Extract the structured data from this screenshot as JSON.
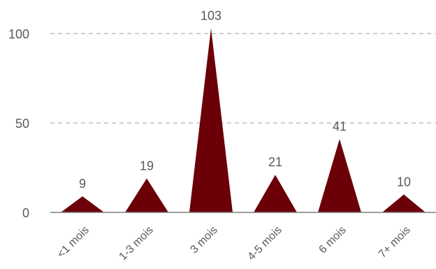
{
  "chart_data": {
    "type": "bar",
    "bar_shape": "triangle",
    "categories": [
      "<1 mois",
      "1-3 mois",
      "3 mois",
      "4-5 mois",
      "6 mois",
      "7+ mois"
    ],
    "values": [
      9,
      19,
      103,
      21,
      41,
      10
    ],
    "data_labels": [
      "9",
      "19",
      "103",
      "21",
      "41",
      "10"
    ],
    "title": "",
    "xlabel": "",
    "ylabel": "",
    "ylim": [
      0,
      100
    ],
    "yticks": [
      "0",
      "50",
      "100"
    ],
    "ytick_values": [
      0,
      50,
      100
    ],
    "grid": "horizontal-dashed",
    "legend": "none",
    "colors": {
      "bar": "#6b0008",
      "grid": "#bfbfbf",
      "axis": "#7f7f7f",
      "text": "#595959"
    }
  }
}
